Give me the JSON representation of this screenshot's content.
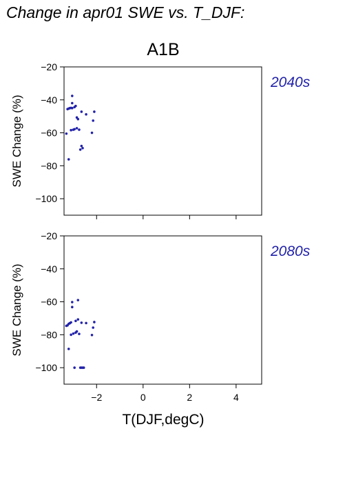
{
  "figure": {
    "title": "Change in apr01 SWE vs. T_DJF:",
    "subtitle": "A1B",
    "xlabel": "T(DJF,degC)",
    "ylabel": "SWE Change (%)",
    "point_color": "#2222aa",
    "label_color": "#2222aa"
  },
  "chart_data": [
    {
      "type": "scatter",
      "panel_label": "2040s",
      "xlim": [
        -3.4,
        5.1
      ],
      "ylim": [
        -110,
        -20
      ],
      "xticks": [
        -2,
        0,
        2,
        4
      ],
      "yticks": [
        -20,
        -40,
        -60,
        -80,
        -100
      ],
      "x_tick_labels": [
        "",
        "",
        "",
        ""
      ],
      "y_tick_labels": [
        "−20",
        "−40",
        "−60",
        "−80",
        "−100"
      ],
      "points": [
        {
          "x": -3.05,
          "y": -37.6
        },
        {
          "x": -3.05,
          "y": -42.0
        },
        {
          "x": -3.25,
          "y": -45.6
        },
        {
          "x": -3.2,
          "y": -45.3
        },
        {
          "x": -3.15,
          "y": -45.0
        },
        {
          "x": -3.1,
          "y": -44.9
        },
        {
          "x": -3.05,
          "y": -45.0
        },
        {
          "x": -2.95,
          "y": -44.4
        },
        {
          "x": -2.9,
          "y": -43.7
        },
        {
          "x": -2.85,
          "y": -50.7
        },
        {
          "x": -2.8,
          "y": -51.7
        },
        {
          "x": -2.65,
          "y": -47.2
        },
        {
          "x": -2.45,
          "y": -48.8
        },
        {
          "x": -2.1,
          "y": -47.2
        },
        {
          "x": -2.15,
          "y": -52.6
        },
        {
          "x": -3.3,
          "y": -60.5
        },
        {
          "x": -3.1,
          "y": -58.4
        },
        {
          "x": -3.0,
          "y": -58.1
        },
        {
          "x": -2.95,
          "y": -57.8
        },
        {
          "x": -2.85,
          "y": -57.2
        },
        {
          "x": -2.75,
          "y": -58.1
        },
        {
          "x": -2.2,
          "y": -60.0
        },
        {
          "x": -2.65,
          "y": -68.0
        },
        {
          "x": -2.6,
          "y": -69.3
        },
        {
          "x": -2.7,
          "y": -70.2
        },
        {
          "x": -3.2,
          "y": -76.1
        }
      ]
    },
    {
      "type": "scatter",
      "panel_label": "2080s",
      "xlim": [
        -3.4,
        5.1
      ],
      "ylim": [
        -110,
        -20
      ],
      "xticks": [
        -2,
        0,
        2,
        4
      ],
      "yticks": [
        -20,
        -40,
        -60,
        -80,
        -100
      ],
      "x_tick_labels": [
        "−2",
        "0",
        "2",
        "4"
      ],
      "y_tick_labels": [
        "−20",
        "−40",
        "−60",
        "−80",
        "−100"
      ],
      "points": [
        {
          "x": -3.05,
          "y": -60.2
        },
        {
          "x": -3.05,
          "y": -63.2
        },
        {
          "x": -2.8,
          "y": -59.0
        },
        {
          "x": -3.3,
          "y": -74.6
        },
        {
          "x": -3.25,
          "y": -74.3
        },
        {
          "x": -3.2,
          "y": -73.4
        },
        {
          "x": -3.15,
          "y": -73.0
        },
        {
          "x": -3.1,
          "y": -72.5
        },
        {
          "x": -2.9,
          "y": -71.6
        },
        {
          "x": -2.8,
          "y": -70.7
        },
        {
          "x": -2.65,
          "y": -72.7
        },
        {
          "x": -2.45,
          "y": -72.9
        },
        {
          "x": -2.1,
          "y": -72.3
        },
        {
          "x": -2.15,
          "y": -75.7
        },
        {
          "x": -3.1,
          "y": -80.0
        },
        {
          "x": -3.0,
          "y": -79.3
        },
        {
          "x": -2.9,
          "y": -78.7
        },
        {
          "x": -2.85,
          "y": -78.0
        },
        {
          "x": -2.75,
          "y": -79.5
        },
        {
          "x": -2.2,
          "y": -80.2
        },
        {
          "x": -3.2,
          "y": -88.6
        },
        {
          "x": -2.95,
          "y": -100.0
        },
        {
          "x": -2.7,
          "y": -100.0
        },
        {
          "x": -2.65,
          "y": -100.0
        },
        {
          "x": -2.6,
          "y": -100.0
        },
        {
          "x": -2.55,
          "y": -100.0
        }
      ]
    }
  ]
}
